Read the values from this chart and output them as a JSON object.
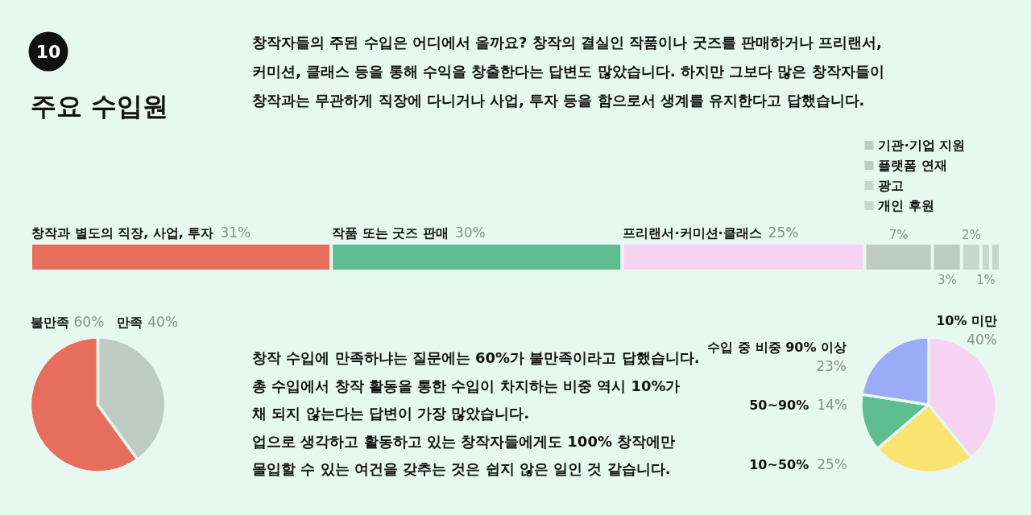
{
  "chart_data": [
    {
      "type": "bar",
      "orientation": "horizontal",
      "stacked": true,
      "title": "주요 수입원",
      "annotations": [
        "10",
        "창작자들의 주된 수입은 어디에서 올까요? 창작의 결실인 작품이나 굿즈를 판매하거나 프리랜서,\n커미션, 클래스 등을 통해 수익을 창출한다는 답변도 많았습니다. 하지만 그보다 많은 창작자들이\n창작과는 무관하게 직장에 다니거나 사업, 투자 등을 함으로서 생계를 유지한다고 답했습니다."
      ],
      "categories": [
        null
      ],
      "legend": "top right",
      "series": [
        {
          "name": "창작과 별도의 직장, 사업, 투자",
          "color": "#e76d5d",
          "values": [
            31
          ],
          "value_labels": [
            "31%"
          ]
        },
        {
          "name": "작품 또는 굿즈 판매",
          "color": "#5dbd90",
          "values": [
            30
          ],
          "value_labels": [
            "30%"
          ]
        },
        {
          "name": "프리랜서·커미션·클래스",
          "color": "#f7d3f3",
          "values": [
            25
          ],
          "value_labels": [
            "25%"
          ]
        },
        {
          "name": "기관·기업 지원",
          "color": "#bdcbc3",
          "values": [
            7
          ],
          "value_labels": [
            "7%"
          ]
        },
        {
          "name": "플랫폼 연재",
          "color": "#bdcbc3",
          "values": [
            3
          ],
          "value_labels": [
            "3%"
          ]
        },
        {
          "name": "광고",
          "color": "#c8d6ce",
          "values": [
            2
          ],
          "value_labels": [
            "2%"
          ]
        },
        {
          "name": "개인 후원",
          "color": "#c8d6ce",
          "values": [
            1
          ],
          "value_labels": [
            "1%"
          ]
        },
        {
          "color": "#c8d6ce",
          "values": [
            1
          ]
        }
      ]
    },
    {
      "type": "pie",
      "categories": [
        "불만족",
        "만족"
      ],
      "values": [
        60,
        40
      ],
      "colors": [
        "#e76d5d",
        "#bdcbc3"
      ],
      "value_labels": [
        "60%",
        "40%"
      ],
      "annotations": [
        "창작 수입에 만족하냐는 질문에는 60%가 불만족이라고 답했습니다.\n총 수입에서 창작 활동을 통한 수입이 차지하는 비중 역시 10%가\n채 되지 않는다는 답변이 가장 많았습니다.\n업으로 생각하고 활동하고 있는 창작자들에게도 100% 창작에만\n몰입할 수 있는 여건을 갖추는 것은 쉽지 않은 일인 것 같습니다."
      ]
    },
    {
      "type": "pie",
      "categories": [
        "10% 미만",
        "10~50%",
        "50~90%",
        "수입 중 비중 90% 이상"
      ],
      "values": [
        40,
        25,
        14,
        23
      ],
      "colors": [
        "#f7d3f3",
        "#fae36e",
        "#5dbd90",
        "#9aabf7"
      ],
      "value_labels": [
        "40%",
        "25%",
        "14%",
        "23%"
      ]
    }
  ]
}
